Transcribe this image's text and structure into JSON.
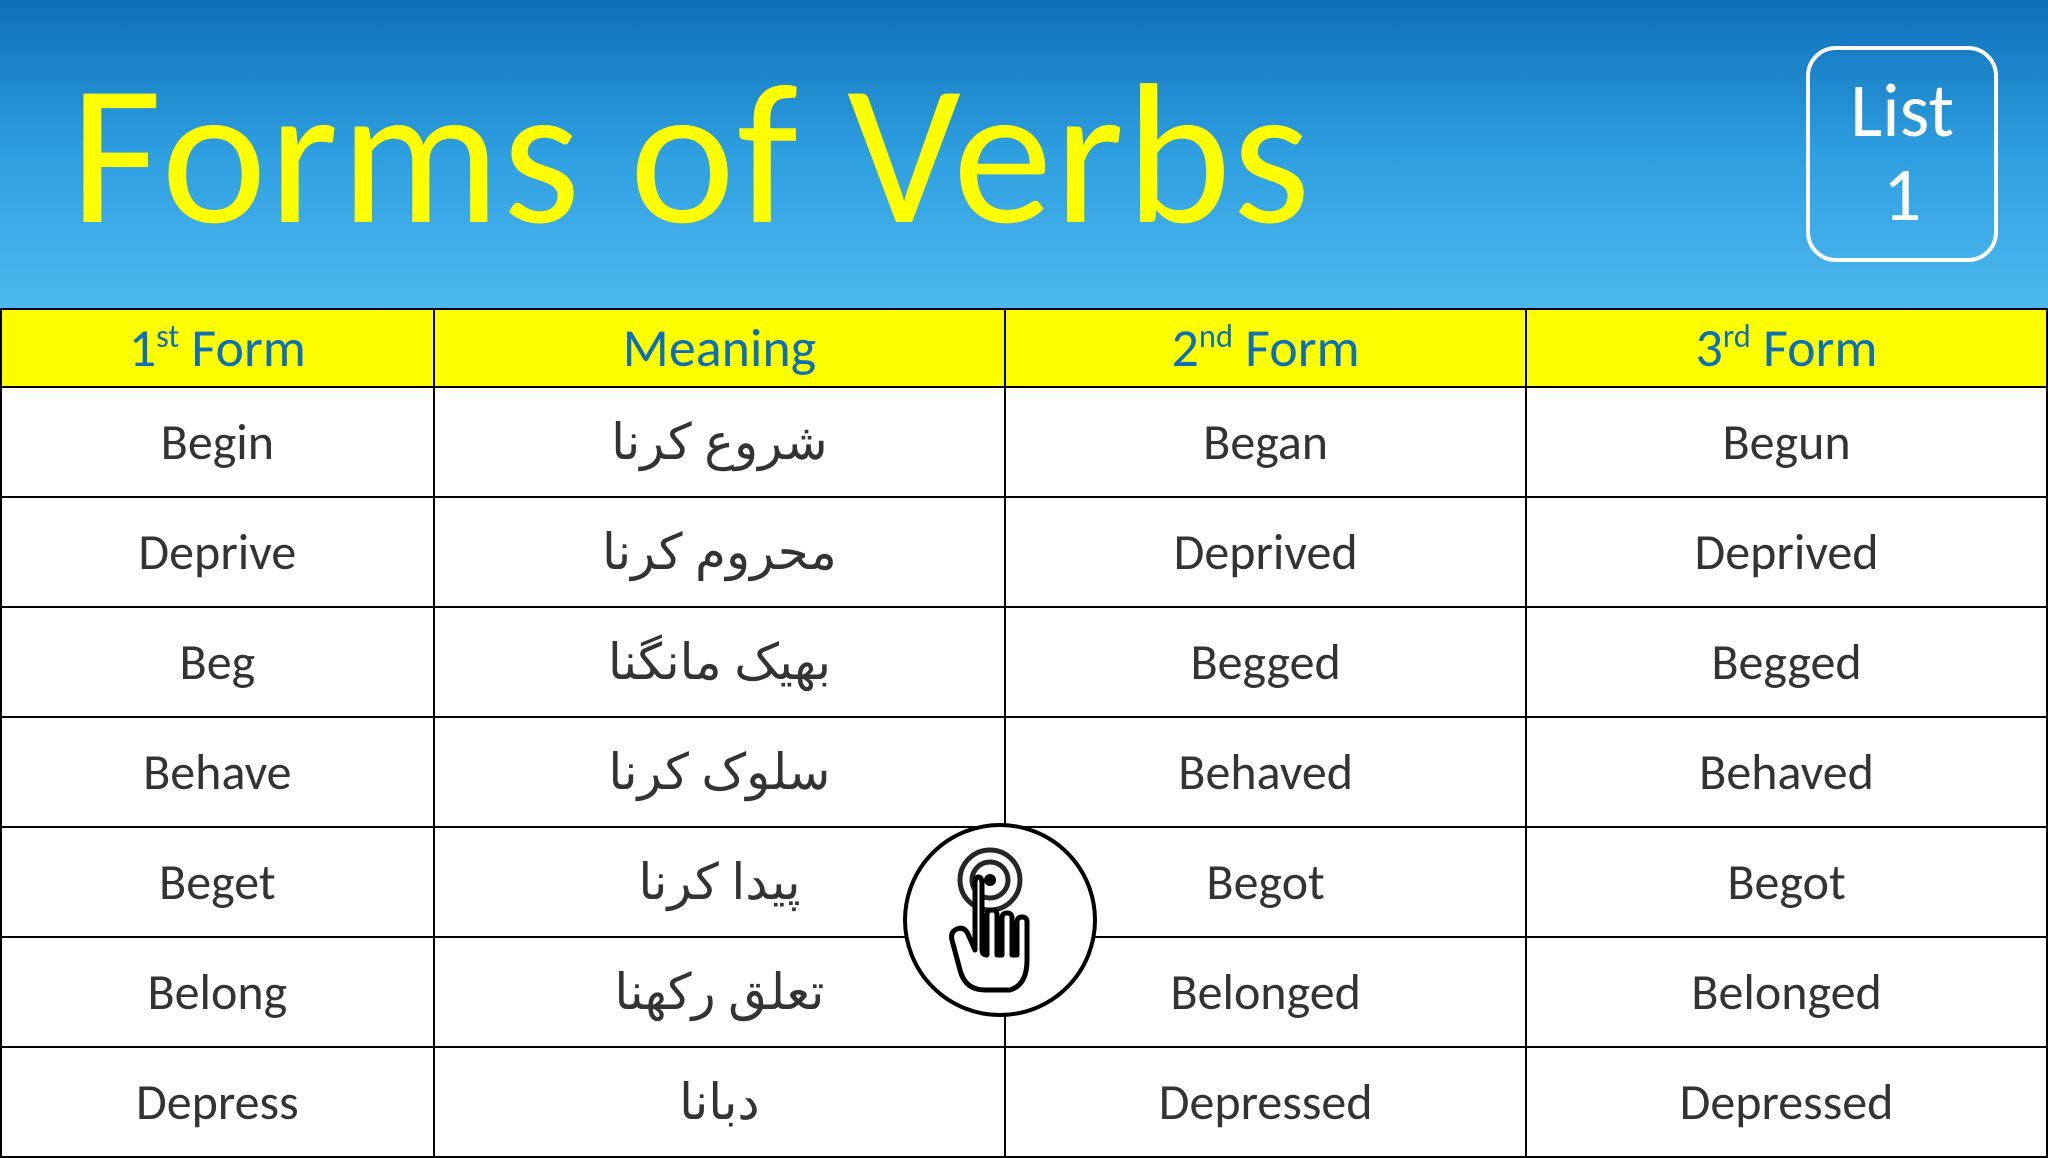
{
  "header": {
    "title": "Forms of Verbs",
    "badge_line1": "List",
    "badge_line2": "1"
  },
  "table": {
    "columns": [
      {
        "pre": "1",
        "sup": "st",
        "post": " Form"
      },
      {
        "pre": "Meaning",
        "sup": "",
        "post": ""
      },
      {
        "pre": "2",
        "sup": "nd",
        "post": " Form"
      },
      {
        "pre": "3",
        "sup": "rd",
        "post": " Form"
      }
    ],
    "rows": [
      {
        "first": "Begin",
        "meaning": "شروع کرنا",
        "second": "Began",
        "third": "Begun"
      },
      {
        "first": "Deprive",
        "meaning": "محروم کرنا",
        "second": "Deprived",
        "third": "Deprived"
      },
      {
        "first": "Beg",
        "meaning": "بھیک مانگنا",
        "second": "Begged",
        "third": "Begged"
      },
      {
        "first": "Behave",
        "meaning": "سلوک کرنا",
        "second": "Behaved",
        "third": "Behaved"
      },
      {
        "first": "Beget",
        "meaning": "پیدا کرنا",
        "second": "Begot",
        "third": "Begot"
      },
      {
        "first": "Belong",
        "meaning": "تعلق رکھنا",
        "second": "Belonged",
        "third": "Belonged"
      },
      {
        "first": "Depress",
        "meaning": "دبانا",
        "second": "Depressed",
        "third": "Depressed"
      }
    ],
    "header_bg": "#ffff00",
    "header_text_color": "#0d6fb8",
    "border_color": "#000000",
    "cell_text_color": "#333333"
  },
  "colors": {
    "gradient_top": "#0d6fb8",
    "gradient_mid": "#2e9fe0",
    "gradient_bottom": "#4db8ef",
    "title_color": "#ffff00",
    "badge_border": "#ffffff",
    "badge_text": "#ffffff"
  }
}
